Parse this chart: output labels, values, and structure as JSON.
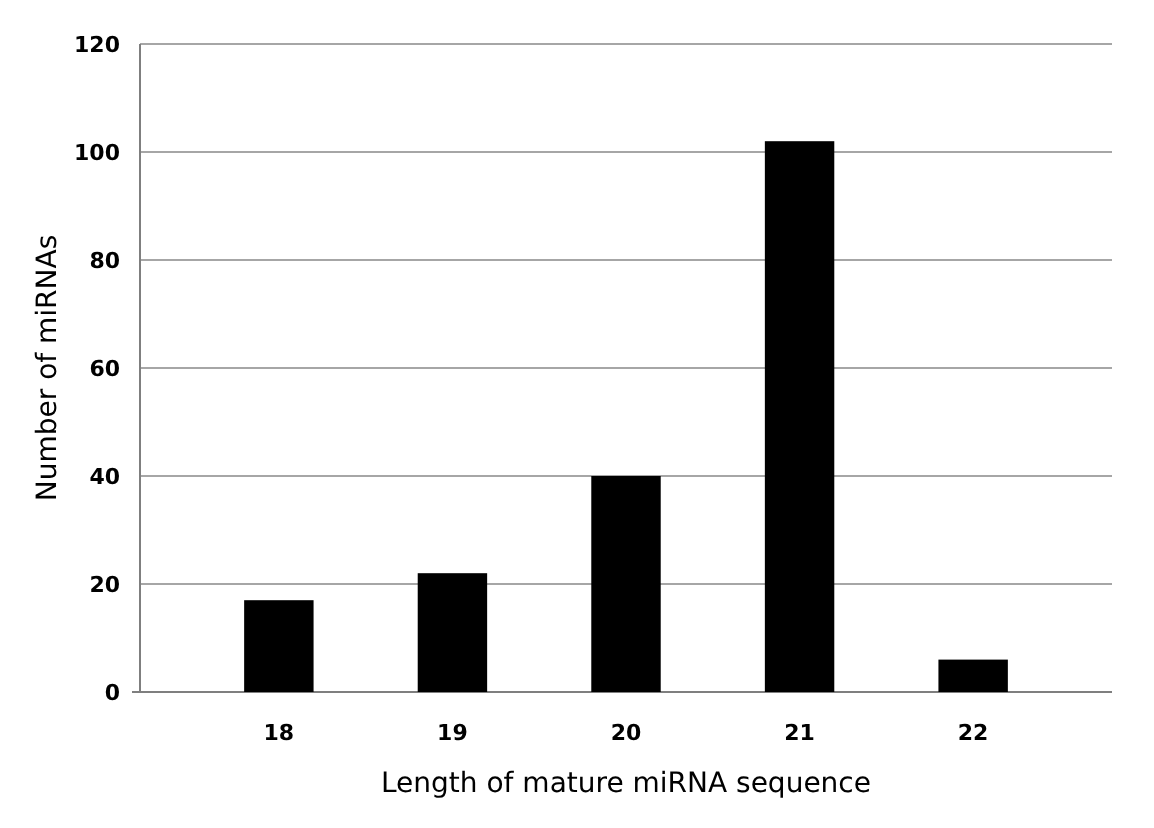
{
  "chart_data": {
    "type": "bar",
    "xlabel": "Length of mature miRNA sequence",
    "ylabel": "Number of miRNAs",
    "categories": [
      "18",
      "19",
      "20",
      "21",
      "22"
    ],
    "values": [
      17,
      22,
      40,
      102,
      6
    ],
    "color": "#000000",
    "ylim": [
      0,
      120
    ],
    "yticks": [
      0,
      20,
      40,
      60,
      80,
      100,
      120
    ],
    "grid": "y"
  }
}
